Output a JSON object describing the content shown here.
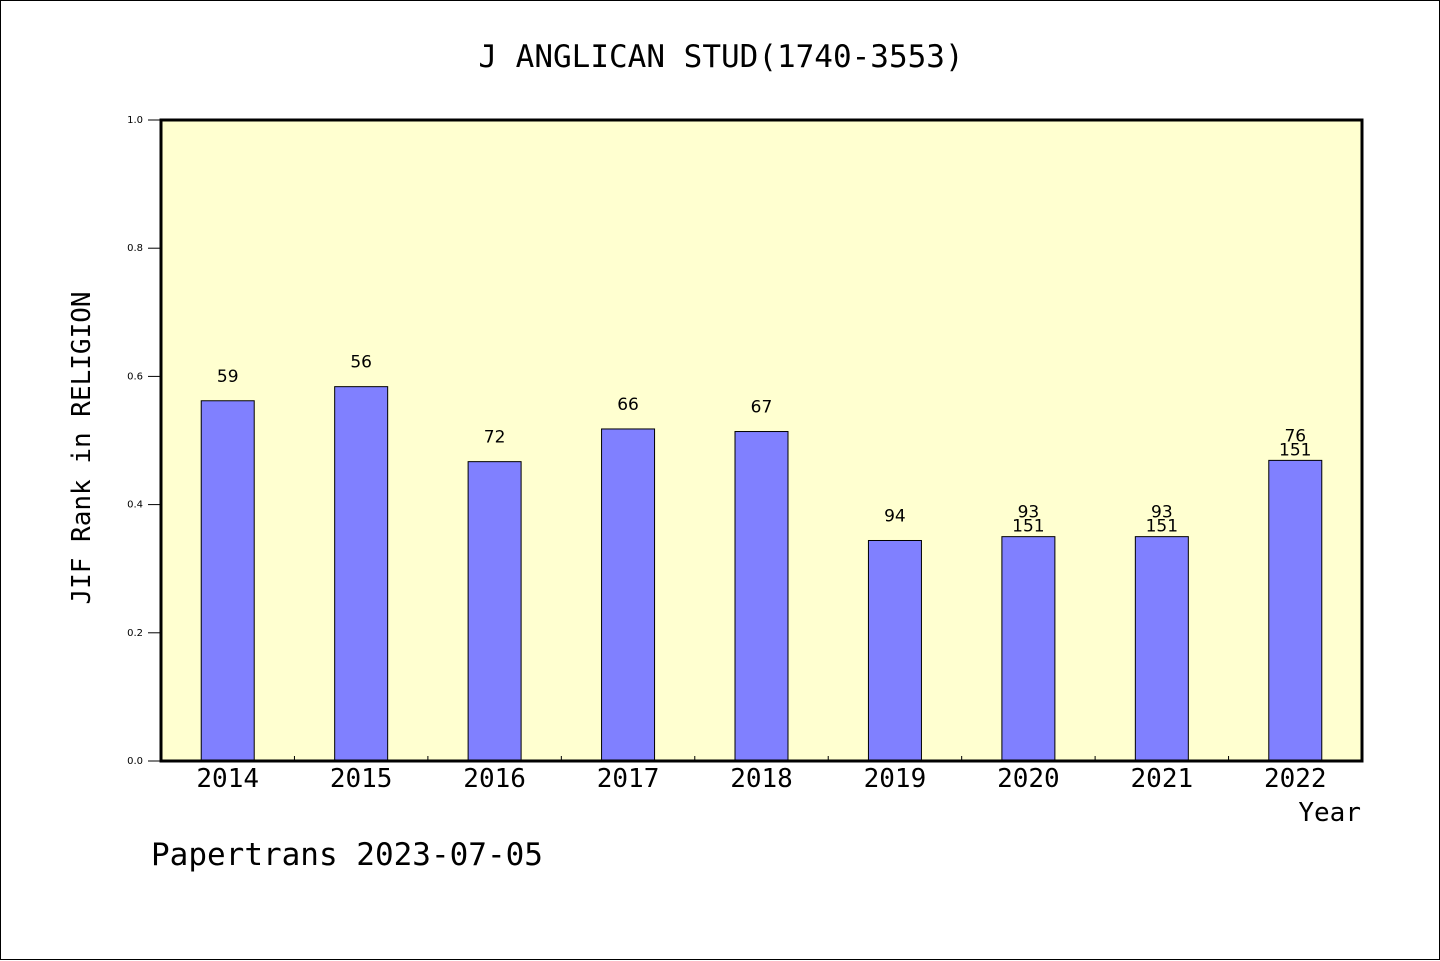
{
  "chart_data": {
    "type": "bar",
    "title": "J ANGLICAN STUD(1740-3553)",
    "xlabel": "Year",
    "ylabel": "JIF Rank in RELIGION",
    "ylim": [
      0.0,
      1.0
    ],
    "yticks": [
      "0.0",
      "0.2",
      "0.4",
      "0.6",
      "0.8",
      "1.0"
    ],
    "categories": [
      "2014",
      "2015",
      "2016",
      "2017",
      "2018",
      "2019",
      "2020",
      "2021",
      "2022"
    ],
    "values": [
      0.562,
      0.584,
      0.467,
      0.518,
      0.514,
      0.344,
      0.35,
      0.35,
      0.469
    ],
    "labels": [
      [
        "59"
      ],
      [
        "56"
      ],
      [
        "72"
      ],
      [
        "66"
      ],
      [
        "67"
      ],
      [
        "94"
      ],
      [
        "93",
        "151"
      ],
      [
        "93",
        "151"
      ],
      [
        "76",
        "151"
      ]
    ],
    "grid": false,
    "legend": "none",
    "footer": "Papertrans 2023-07-05",
    "colors": {
      "bar": "#8080ff",
      "plot_background": "#ffffd0",
      "axis": "#000000"
    }
  }
}
